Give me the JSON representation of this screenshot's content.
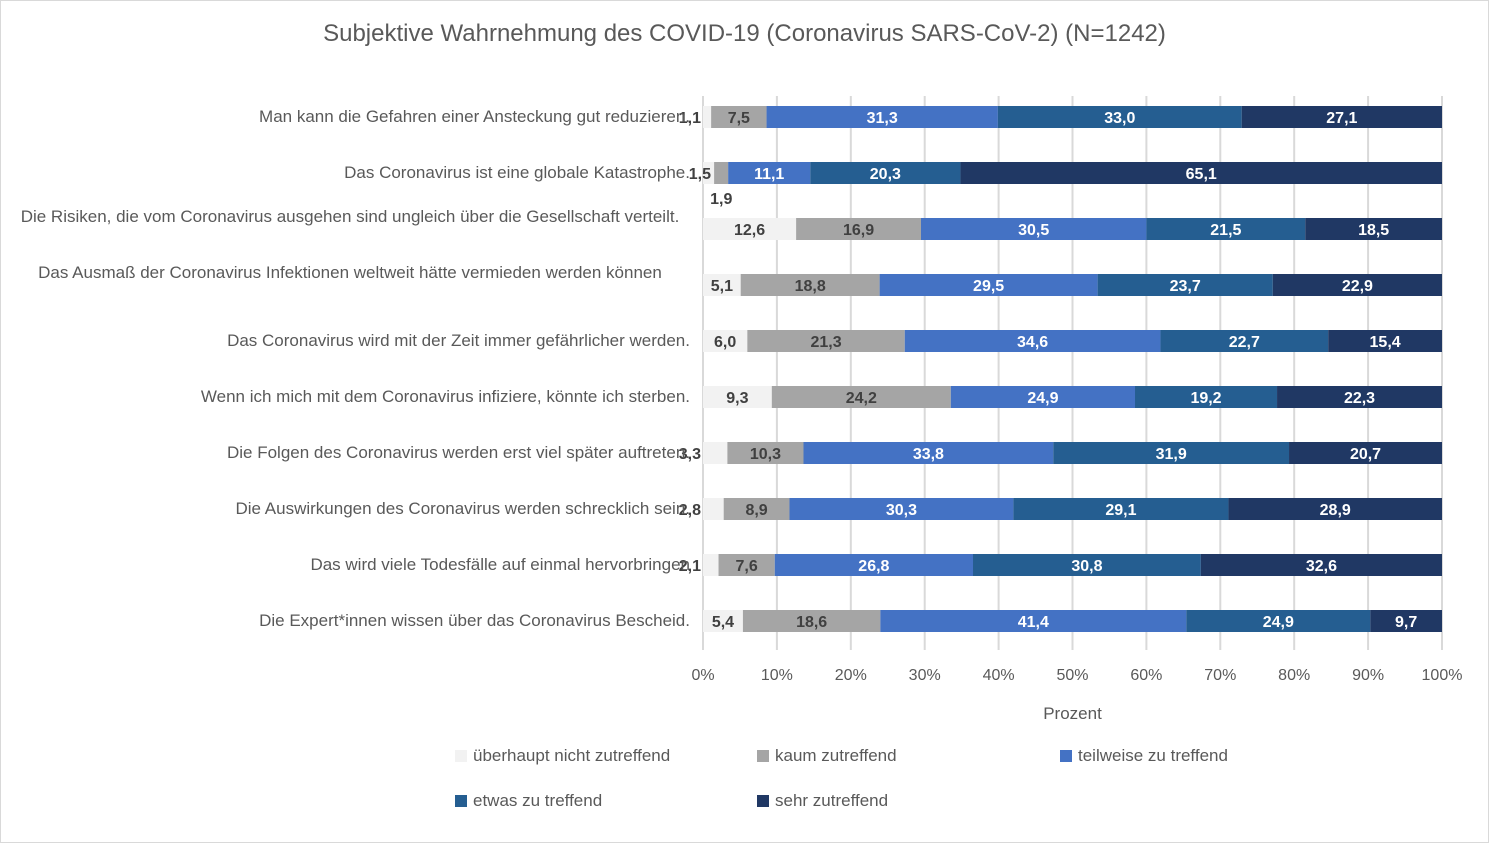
{
  "chart_data": {
    "type": "bar",
    "orientation": "horizontal",
    "stacked": "percent",
    "title": "Subjektive Wahrnehmung des COVID-19  (Coronavirus SARS-CoV-2) (N=1242)",
    "xlabel": "Prozent",
    "ylabel": "",
    "xlim": [
      0,
      100
    ],
    "xticks": [
      "0%",
      "10%",
      "20%",
      "30%",
      "40%",
      "50%",
      "60%",
      "70%",
      "80%",
      "90%",
      "100%"
    ],
    "grid": true,
    "legend_position": "bottom",
    "categories": [
      "Man kann die Gefahren einer Ansteckung gut reduzieren.",
      "Das Coronavirus ist eine globale Katastrophe.",
      "Die Risiken, die vom Coronavirus ausgehen sind ungleich über die Gesellschaft verteilt.",
      "Das Ausmaß der Coronavirus Infektionen weltweit hätte vermieden werden können",
      "Das Coronavirus wird mit der Zeit immer gefährlicher werden.",
      "Wenn ich mich mit dem Coronavirus infiziere, könnte ich sterben.",
      "Die Folgen des Coronavirus werden erst viel später auftreten.",
      "Die Auswirkungen des Coronavirus werden schrecklich sein.",
      "Das wird viele Todesfälle auf einmal hervorbringen",
      "Die Expert*innen wissen über das Coronavirus Bescheid."
    ],
    "series": [
      {
        "name": "überhaupt nicht zutreffend",
        "color": "#f2f2f2",
        "label_color": "#404040",
        "values": [
          1.1,
          1.5,
          12.6,
          5.1,
          6.0,
          9.3,
          3.3,
          2.8,
          2.1,
          5.4
        ],
        "labels": [
          "1,1",
          "1,5",
          "12,6",
          "5,1",
          "6,0",
          "9,3",
          "3,3",
          "2,8",
          "2,1",
          "5,4"
        ]
      },
      {
        "name": "kaum zutreffend",
        "color": "#a5a5a5",
        "label_color": "#404040",
        "values": [
          7.5,
          1.9,
          16.9,
          18.8,
          21.3,
          24.2,
          10.3,
          8.9,
          7.6,
          18.6
        ],
        "labels": [
          "7,5",
          "1,9",
          "16,9",
          "18,8",
          "21,3",
          "24,2",
          "10,3",
          "8,9",
          "7,6",
          "18,6"
        ]
      },
      {
        "name": "teilweise zu treffend",
        "color": "#4472c4",
        "label_color": "#ffffff",
        "values": [
          31.3,
          11.1,
          30.5,
          29.5,
          34.6,
          24.9,
          33.8,
          30.3,
          26.8,
          41.4
        ],
        "labels": [
          "31,3",
          "11,1",
          "30,5",
          "29,5",
          "34,6",
          "24,9",
          "33,8",
          "30,3",
          "26,8",
          "41,4"
        ]
      },
      {
        "name": "etwas zu treffend",
        "color": "#255e91",
        "label_color": "#ffffff",
        "values": [
          33.0,
          20.3,
          21.5,
          23.7,
          22.7,
          19.2,
          31.9,
          29.1,
          30.8,
          24.9
        ],
        "labels": [
          "33,0",
          "20,3",
          "21,5",
          "23,7",
          "22,7",
          "19,2",
          "31,9",
          "29,1",
          "30,8",
          "24,9"
        ]
      },
      {
        "name": "sehr zutreffend",
        "color": "#203864",
        "label_color": "#ffffff",
        "values": [
          27.1,
          65.1,
          18.5,
          22.9,
          15.4,
          22.3,
          20.7,
          28.9,
          32.6,
          9.7
        ],
        "labels": [
          "27,1",
          "65,1",
          "18,5",
          "22,9",
          "15,4",
          "22,3",
          "20,7",
          "28,9",
          "32,6",
          "9,7"
        ]
      }
    ]
  }
}
